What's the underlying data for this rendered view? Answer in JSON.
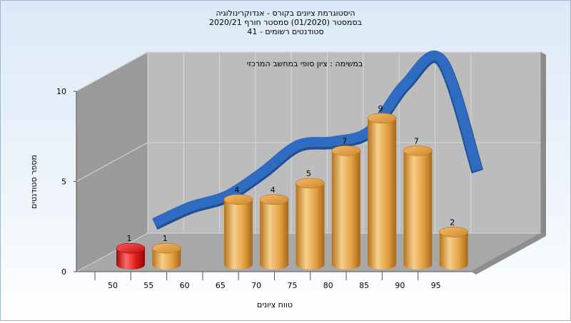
{
  "chart_data": {
    "type": "bar",
    "title_lines": [
      "היסטוגרמת ציונים בקורס - אנדוקרינולוגיה",
      "בסמסטר  (01/2020)  סמסטר חורף  2020/21",
      "סטודנטים רשומים - 41"
    ],
    "subtitle": "במשימה : ציון סופי במחשב המרכזי",
    "xlabel": "טווח ציונים",
    "ylabel": "מספר סטודנטים",
    "x_ticks": [
      "50",
      "55",
      "60",
      "65",
      "70",
      "75",
      "80",
      "85",
      "90",
      "95"
    ],
    "y_ticks": [
      "0",
      "5",
      "10"
    ],
    "ylim": [
      0,
      10
    ],
    "grid": true,
    "categories": [
      "50",
      "55",
      "60",
      "65",
      "70",
      "75",
      "80",
      "85",
      "90",
      "95"
    ],
    "values": [
      1,
      1,
      0,
      4,
      4,
      5,
      7,
      9,
      7,
      2
    ],
    "value_labels": [
      "1",
      "1",
      "",
      "4",
      "4",
      "5",
      "7",
      "9",
      "7",
      "2"
    ],
    "highlight_index": 0,
    "distribution_curve": {
      "x": [
        50,
        55,
        60,
        65,
        70,
        75,
        80,
        85,
        90,
        95
      ],
      "values": [
        0.5,
        1.4,
        2.0,
        3.3,
        4.8,
        5.0,
        5.6,
        8.2,
        9.5,
        3.4
      ]
    },
    "colors": {
      "bar": "#e8a445",
      "bar_highlight": "#e01818",
      "curve": "#2f6bc0",
      "back_wall": "#bcbcbc",
      "side_wall": "#9a9a9a",
      "floor": "#a8a8a8"
    }
  }
}
